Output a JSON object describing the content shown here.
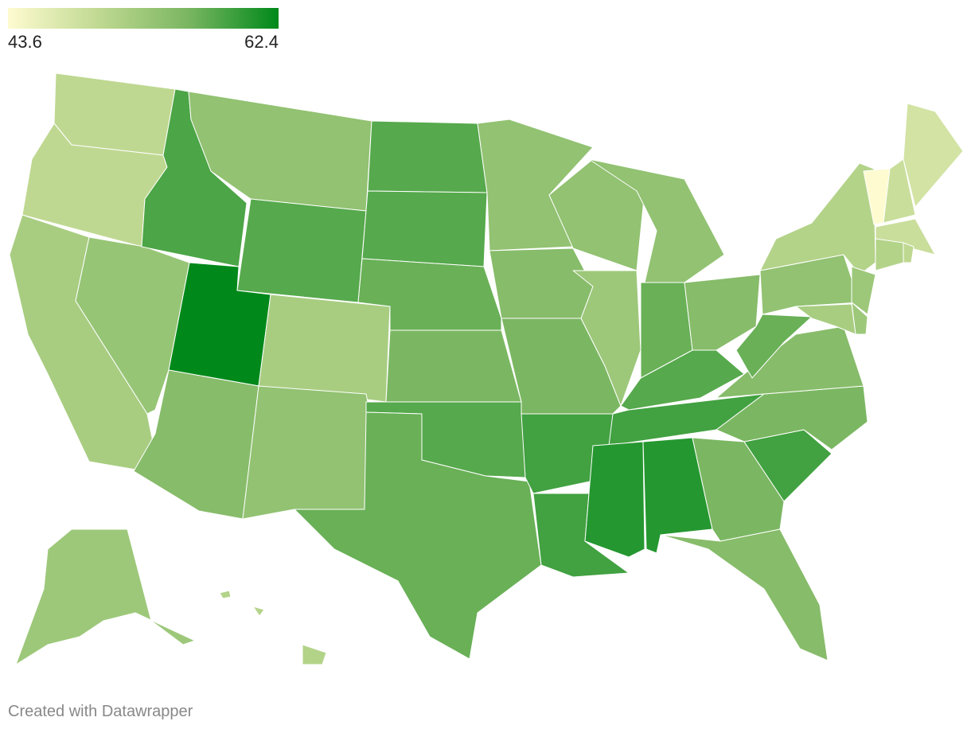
{
  "map": {
    "legend": {
      "min": 43.6,
      "max": 62.4,
      "colors": [
        "#fefbd0",
        "#c0d992",
        "#7ab661",
        "#00891a"
      ]
    },
    "values": [
      50,
      50,
      52,
      53.5,
      58.5,
      54,
      58,
      62.4,
      52,
      55,
      54,
      58,
      58,
      57,
      56,
      58,
      57,
      54,
      55,
      56,
      59,
      59,
      54,
      53,
      54,
      57,
      55,
      58,
      59,
      60.5,
      60.5,
      56,
      55,
      59,
      56,
      55,
      57,
      54,
      51,
      43.6,
      49,
      48,
      49,
      51,
      50,
      53,
      53,
      52,
      53,
      51
    ],
    "credit": "Created with Datawrapper"
  }
}
